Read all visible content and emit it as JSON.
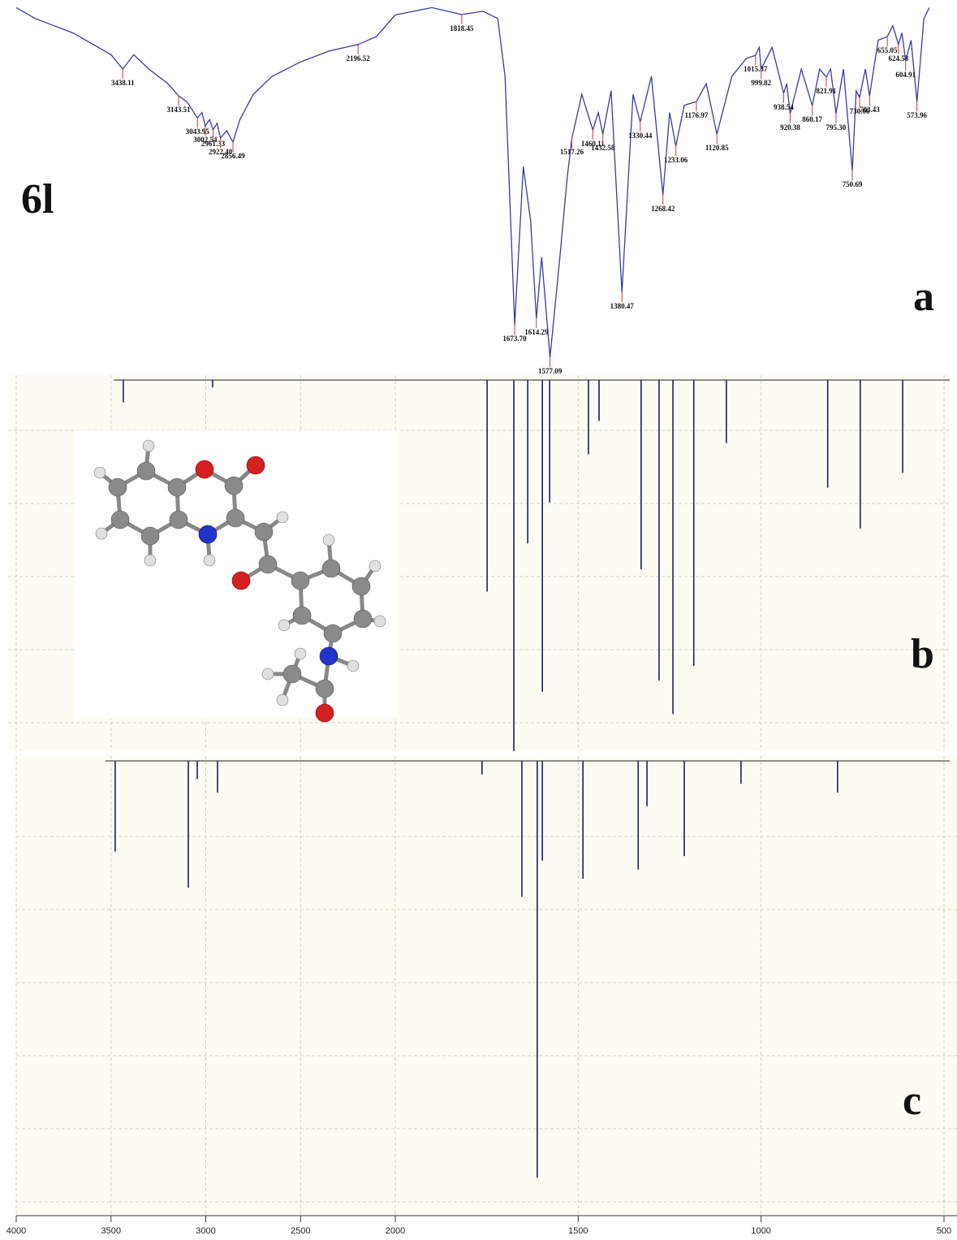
{
  "chart_data": [
    {
      "type": "line",
      "compound": "6l",
      "label": "a",
      "color": "#3a3aa8",
      "xlim": [
        4000,
        500
      ],
      "ylim": [
        0,
        100
      ],
      "x_scale_break": 2000,
      "x": [
        4000,
        3900,
        3800,
        3700,
        3600,
        3500,
        3438.11,
        3380,
        3300,
        3200,
        3143.51,
        3100,
        3043.95,
        3020,
        3002.54,
        2980,
        2961.33,
        2940,
        2922.4,
        2890,
        2856.49,
        2820,
        2750,
        2650,
        2500,
        2350,
        2196.52,
        2100,
        2000,
        1900,
        1818.45,
        1760,
        1720,
        1700,
        1673.7,
        1650,
        1630,
        1614.29,
        1600,
        1577.09,
        1550,
        1530,
        1517.26,
        1490,
        1460.11,
        1445,
        1432.58,
        1410,
        1380.47,
        1350,
        1330.44,
        1300,
        1268.42,
        1250,
        1233.06,
        1210,
        1176.97,
        1150,
        1120.85,
        1080,
        1040,
        1015.37,
        1005,
        999.82,
        970,
        938.54,
        930,
        920.38,
        890,
        860.17,
        840,
        821.91,
        810,
        795.3,
        775,
        750.69,
        740,
        730.66,
        715,
        703.43,
        680,
        655.05,
        640,
        624.53,
        615,
        604.91,
        590,
        573.96,
        555,
        540
      ],
      "values": [
        99,
        96,
        94,
        92,
        89,
        86,
        82,
        86,
        82,
        78,
        74.6,
        73,
        68.5,
        70,
        66.3,
        68,
        65.2,
        67,
        62.9,
        65,
        61.8,
        68,
        75,
        80,
        84,
        87,
        88.8,
        91,
        97,
        99,
        97.1,
        98,
        96,
        80,
        11.2,
        55,
        40,
        13,
        30,
        2.2,
        30,
        52,
        62.9,
        75,
        65.2,
        70,
        64,
        76,
        20.2,
        75,
        67.4,
        80,
        47.2,
        70,
        60.7,
        72,
        73,
        78,
        64,
        80,
        85,
        85.8,
        88,
        82,
        88,
        75.3,
        78,
        69.7,
        82,
        71.9,
        82,
        79.8,
        82,
        69.7,
        82,
        53.9,
        76,
        74.2,
        82,
        74.6,
        90,
        91,
        94,
        88.8,
        92,
        84.3,
        90,
        73,
        96,
        99
      ],
      "peaks": [
        {
          "x": 3438.11,
          "y": 82
        },
        {
          "x": 3143.51,
          "y": 74.6
        },
        {
          "x": 3043.95,
          "y": 68.5
        },
        {
          "x": 3002.54,
          "y": 66.3
        },
        {
          "x": 2961.33,
          "y": 65.2
        },
        {
          "x": {
            "value": 2922.4,
            "label": "2922.40"
          },
          "y": 62.9
        },
        {
          "x": 2856.49,
          "y": 61.8
        },
        {
          "x": 2196.52,
          "y": 88.8
        },
        {
          "x": 1818.45,
          "y": 97.1
        },
        {
          "x": {
            "value": 1673.7,
            "label": "1673.70"
          },
          "y": 11.2
        },
        {
          "x": 1614.29,
          "y": 13
        },
        {
          "x": 1577.09,
          "y": 2.2
        },
        {
          "x": 1517.26,
          "y": 62.9
        },
        {
          "x": 1460.11,
          "y": 65.2
        },
        {
          "x": 1432.58,
          "y": 64
        },
        {
          "x": 1380.47,
          "y": 20.2
        },
        {
          "x": 1330.44,
          "y": 67.4
        },
        {
          "x": 1268.42,
          "y": 47.2
        },
        {
          "x": 1233.06,
          "y": 60.7
        },
        {
          "x": 1176.97,
          "y": 73
        },
        {
          "x": 1120.85,
          "y": 64
        },
        {
          "x": 1015.37,
          "y": 85.8
        },
        {
          "x": 999.82,
          "y": 82
        },
        {
          "x": 938.54,
          "y": 75.3
        },
        {
          "x": 920.38,
          "y": 69.7
        },
        {
          "x": 860.17,
          "y": 71.9
        },
        {
          "x": 821.91,
          "y": 79.8
        },
        {
          "x": {
            "value": 795.3,
            "label": "795.30"
          },
          "y": 69.7
        },
        {
          "x": 750.69,
          "y": 53.9
        },
        {
          "x": 730.66,
          "y": 74.2
        },
        {
          "x": 703.43,
          "y": 74.6
        },
        {
          "x": 655.05,
          "y": 91
        },
        {
          "x": 624.53,
          "y": 88.8
        },
        {
          "x": 604.91,
          "y": 84.3
        },
        {
          "x": 573.96,
          "y": 73
        }
      ]
    },
    {
      "type": "stick",
      "label": "b",
      "color": "#1c1c70",
      "xlim": [
        4000,
        500
      ],
      "ylim": [
        0,
        100
      ],
      "x_scale_break": 2000,
      "grid": true,
      "x": [
        3435,
        2964,
        1749,
        1676,
        1638,
        1598,
        1578,
        1472,
        1443,
        1328,
        1279,
        1241,
        1184,
        1095,
        818,
        729,
        613
      ],
      "values": [
        6,
        2,
        57,
        100,
        44,
        84,
        33,
        20,
        11,
        51,
        81,
        90,
        77,
        17,
        29,
        40,
        25
      ]
    },
    {
      "type": "stick",
      "label": "c",
      "color": "#1c1c70",
      "xlim": [
        4000,
        500
      ],
      "ylim": [
        0,
        100
      ],
      "x_scale_break": 2000,
      "grid": true,
      "x": [
        3478,
        3092,
        3045,
        2938,
        1763,
        1654,
        1612,
        1598,
        1487,
        1336,
        1312,
        1210,
        1055,
        791
      ],
      "values": [
        20,
        28,
        4,
        7,
        3,
        30,
        92,
        22,
        26,
        24,
        10,
        21,
        5,
        7
      ],
      "xticks": [
        4000,
        3500,
        3000,
        2500,
        2000,
        1500,
        1000,
        500
      ]
    }
  ]
}
